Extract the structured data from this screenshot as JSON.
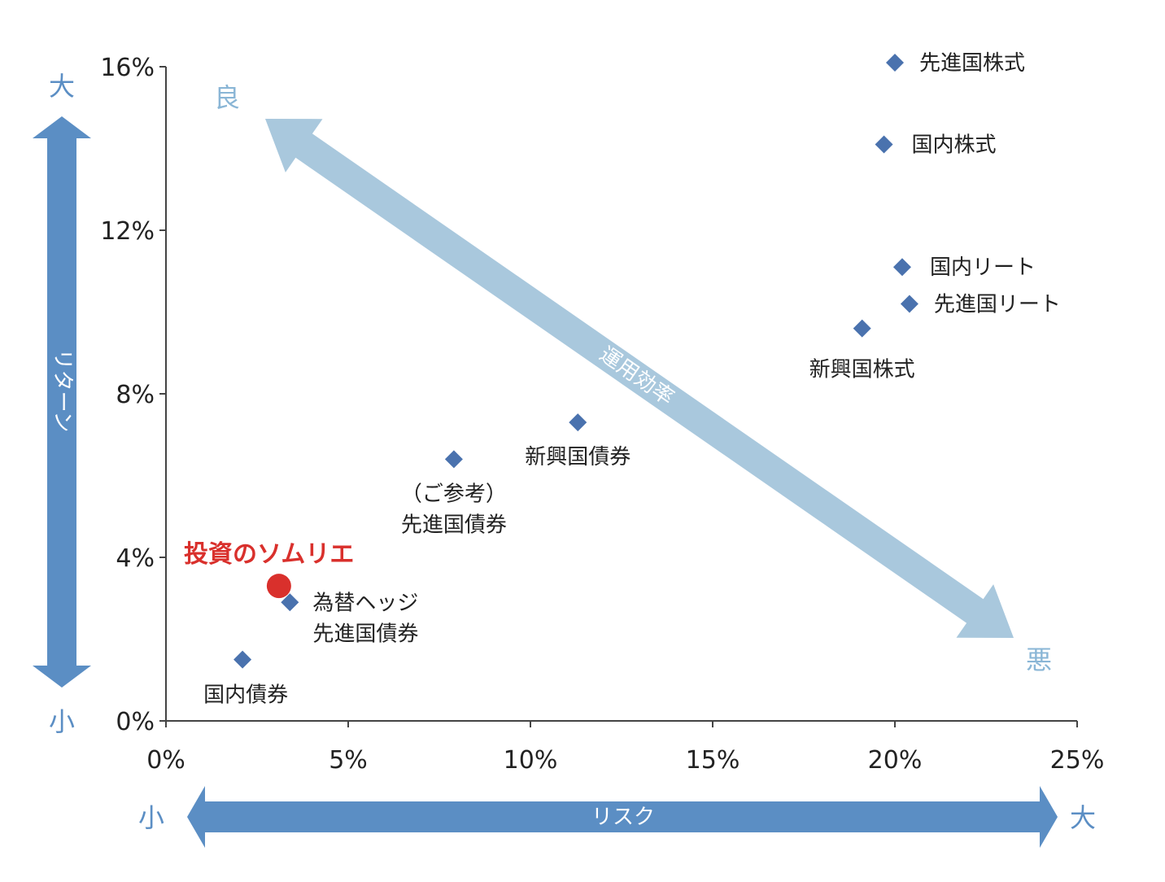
{
  "chart_data": {
    "type": "scatter",
    "xlabel": "リスク",
    "ylabel": "リターン",
    "xlim": [
      0,
      25
    ],
    "ylim": [
      0,
      16
    ],
    "x_ticks": [
      0,
      5,
      10,
      15,
      20,
      25
    ],
    "y_ticks": [
      0,
      4,
      8,
      12,
      16
    ],
    "x_tick_labels": [
      "0%",
      "5%",
      "10%",
      "15%",
      "20%",
      "25%"
    ],
    "y_tick_labels": [
      "0%",
      "4%",
      "8%",
      "12%",
      "16%"
    ],
    "x_axis_small": "小",
    "x_axis_large": "大",
    "y_axis_small": "小",
    "y_axis_large": "大",
    "efficiency_label": "運用効率",
    "efficiency_good": "良",
    "efficiency_bad": "悪",
    "points": [
      {
        "name": "先進国株式",
        "x": 20.0,
        "y": 16.1,
        "label_lines": [
          "先進国株式"
        ]
      },
      {
        "name": "国内株式",
        "x": 19.7,
        "y": 14.1,
        "label_lines": [
          "国内株式"
        ]
      },
      {
        "name": "国内リート",
        "x": 20.2,
        "y": 11.1,
        "label_lines": [
          "国内リート"
        ]
      },
      {
        "name": "先進国リート",
        "x": 20.4,
        "y": 10.2,
        "label_lines": [
          "先進国リート"
        ]
      },
      {
        "name": "新興国株式",
        "x": 19.1,
        "y": 9.6,
        "label_lines": [
          "新興国株式"
        ]
      },
      {
        "name": "新興国債券",
        "x": 11.3,
        "y": 7.3,
        "label_lines": [
          "新興国債券"
        ]
      },
      {
        "name": "（ご参考）先進国債券",
        "x": 7.9,
        "y": 6.4,
        "label_lines": [
          "（ご参考）",
          "先進国債券"
        ]
      },
      {
        "name": "為替ヘッジ先進国債券",
        "x": 3.4,
        "y": 2.9,
        "label_lines": [
          "為替ヘッジ",
          "先進国債券"
        ]
      },
      {
        "name": "国内債券",
        "x": 2.1,
        "y": 1.5,
        "label_lines": [
          "国内債券"
        ]
      }
    ],
    "highlight": {
      "name": "投資のソムリエ",
      "x": 3.1,
      "y": 3.3,
      "color": "#d9302c"
    },
    "marker_color": "#4a72ae",
    "axis_arrow_color": "#5b8ec4",
    "efficiency_arrow_color": "#a9c8dd"
  }
}
